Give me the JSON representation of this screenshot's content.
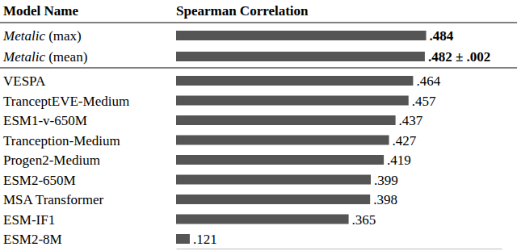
{
  "chart_data": {
    "type": "bar",
    "orientation": "horizontal",
    "ylabel": "Model Name",
    "xlabel": "Spearman Correlation",
    "categories": [
      "Metalic (max)",
      "Metalic (mean)",
      "VESPA",
      "TranceptEVE-Medium",
      "ESM1-v-650M",
      "Tranception-Medium",
      "Progen2-Medium",
      "ESM2-650M",
      "MSA Transformer",
      "ESM-IF1",
      "ESM2-8M"
    ],
    "values": [
      0.484,
      0.482,
      0.464,
      0.457,
      0.437,
      0.427,
      0.419,
      0.399,
      0.398,
      0.365,
      0.121
    ],
    "value_labels": [
      ".484",
      ".482 ± .002",
      ".464",
      ".457",
      ".437",
      ".427",
      ".419",
      ".399",
      ".398",
      ".365",
      ".121"
    ],
    "data_labels": true,
    "color": "#555555",
    "xlim": [
      0.1,
      0.6
    ],
    "xticks": [],
    "tick_labels": false,
    "grid": false
  }
}
